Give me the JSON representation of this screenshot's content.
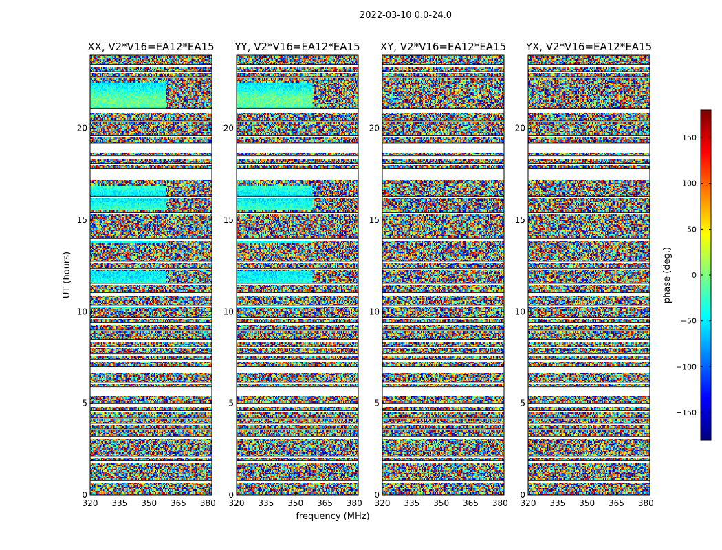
{
  "figure": {
    "suptitle": "2022-03-10 0.0-24.0",
    "xlabel": "frequency (MHz)",
    "ylabel": "UT (hours)",
    "colorbar_label": "phase (deg.)",
    "colorbar_ticks": [
      "150",
      "100",
      "50",
      "0",
      "−50",
      "−100",
      "−150"
    ]
  },
  "chart_data": {
    "type": "heatmap",
    "colormap": "jet",
    "value_range": [
      -180,
      180
    ],
    "colorbar_tick_values": [
      150,
      100,
      50,
      0,
      -50,
      -100,
      -150
    ],
    "x_ticks": [
      320,
      335,
      350,
      365,
      380
    ],
    "x_tick_labels": [
      "320",
      "335",
      "350",
      "365",
      "380"
    ],
    "y_ticks": [
      0,
      5,
      10,
      15,
      20
    ],
    "y_tick_labels": [
      "0",
      "5",
      "10",
      "15",
      "20"
    ],
    "xlim": [
      320,
      382
    ],
    "ylim": [
      0,
      24
    ],
    "panels": [
      {
        "title": "XX, V2*V16=EA12*EA15",
        "coherent": true
      },
      {
        "title": "YY, V2*V16=EA12*EA15",
        "coherent": true
      },
      {
        "title": "XY, V2*V16=EA12*EA15",
        "coherent": false
      },
      {
        "title": "YX, V2*V16=EA12*EA15",
        "coherent": false
      }
    ],
    "flagged_ut_hours": [
      [
        0.7,
        0.8
      ],
      [
        1.1,
        1.15
      ],
      [
        1.7,
        1.9
      ],
      [
        2.0,
        2.1
      ],
      [
        3.1,
        3.2
      ],
      [
        3.5,
        3.6
      ],
      [
        3.8,
        3.9
      ],
      [
        4.1,
        4.2
      ],
      [
        4.5,
        4.6
      ],
      [
        4.8,
        5.0
      ],
      [
        5.4,
        5.9
      ],
      [
        6.1,
        6.15
      ],
      [
        6.7,
        7.0
      ],
      [
        7.3,
        7.4
      ],
      [
        7.6,
        7.7
      ],
      [
        8.0,
        8.1
      ],
      [
        8.3,
        8.5
      ],
      [
        8.9,
        9.0
      ],
      [
        9.3,
        9.4
      ],
      [
        9.6,
        9.7
      ],
      [
        10.25,
        10.35
      ],
      [
        10.85,
        11.05
      ],
      [
        11.5,
        11.55
      ],
      [
        12.3,
        12.35
      ],
      [
        12.65,
        12.75
      ],
      [
        13.9,
        14.0
      ],
      [
        15.3,
        15.4
      ],
      [
        16.2,
        16.3
      ],
      [
        17.2,
        17.8
      ],
      [
        18.0,
        18.1
      ],
      [
        18.3,
        18.5
      ],
      [
        18.7,
        19.2
      ],
      [
        19.5,
        19.6
      ],
      [
        20.3,
        20.4
      ],
      [
        20.85,
        21.1
      ],
      [
        22.7,
        22.8
      ],
      [
        23.05,
        23.1
      ],
      [
        23.35,
        23.5
      ]
    ],
    "coherent_ut_hours": [
      [
        10.2,
        10.3
      ],
      [
        11.5,
        12.2
      ],
      [
        13.7,
        13.9
      ],
      [
        15.5,
        16.9
      ],
      [
        21.0,
        22.5
      ]
    ]
  }
}
